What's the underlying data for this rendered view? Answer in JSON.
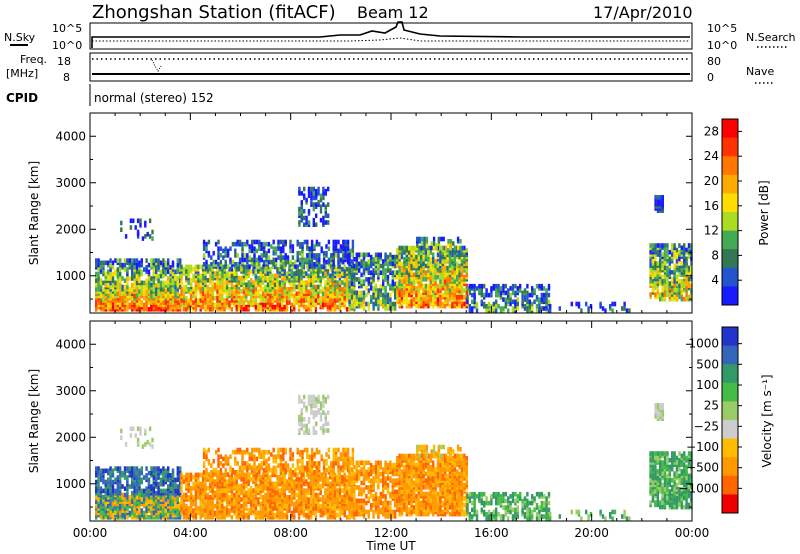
{
  "header": {
    "station": "Zhongshan Station (fitACF)",
    "beam": "Beam 12",
    "date": "17/Apr/2010"
  },
  "sky_panel": {
    "left_label": "N.Sky",
    "right_label": "N.Search",
    "ticks_left": [
      "10^5",
      "10^0"
    ],
    "ticks_right": [
      "10^5",
      "10^0"
    ]
  },
  "freq_panel": {
    "left_label_1": "Freq.",
    "left_label_2": "[MHz]",
    "right_label": "Nave",
    "ticks_left": [
      "18",
      "8"
    ],
    "ticks_right": [
      "80",
      "0"
    ]
  },
  "cpid": {
    "label": "CPID",
    "value": "normal (stereo) 152"
  },
  "colors": {
    "power": [
      "#1a1aff",
      "#2255cc",
      "#337755",
      "#44aa55",
      "#aadd22",
      "#ffdd00",
      "#ffaa00",
      "#ff7700",
      "#ff3300",
      "#ff0000"
    ],
    "velocity": [
      "#ee0000",
      "#ff6600",
      "#ff9900",
      "#ffbb00",
      "#cccccc",
      "#99cc66",
      "#44bb44",
      "#339966",
      "#3366bb",
      "#2233cc"
    ]
  },
  "chart_data": [
    {
      "type": "heatmap",
      "name": "power",
      "ylabel": "Slant Range [km]",
      "xlabel": "",
      "xlim": [
        "00:00",
        "24:00"
      ],
      "ylim": [
        200,
        4500
      ],
      "y_ticks": [
        "1000",
        "2000",
        "3000",
        "4000"
      ],
      "x_ticks": [
        "00:00",
        "04:00",
        "08:00",
        "12:00",
        "16:00",
        "20:00",
        "00:00"
      ],
      "colorbar": {
        "label": "Power [dB]",
        "ticks": [
          "4",
          "8",
          "12",
          "16",
          "20",
          "24",
          "28"
        ],
        "range": [
          0,
          30
        ]
      }
    },
    {
      "type": "heatmap",
      "name": "velocity",
      "ylabel": "Slant Range [km]",
      "xlabel": "Time UT",
      "xlim": [
        "00:00",
        "24:00"
      ],
      "ylim": [
        200,
        4500
      ],
      "y_ticks": [
        "1000",
        "2000",
        "3000",
        "4000"
      ],
      "x_ticks": [
        "00:00",
        "04:00",
        "08:00",
        "12:00",
        "16:00",
        "20:00",
        "00:00"
      ],
      "colorbar": {
        "label": "Velocity [m s⁻¹]",
        "ticks": [
          "1000",
          "500",
          "100",
          "25",
          "−25",
          "−100",
          "−500",
          "−1000"
        ]
      }
    }
  ]
}
